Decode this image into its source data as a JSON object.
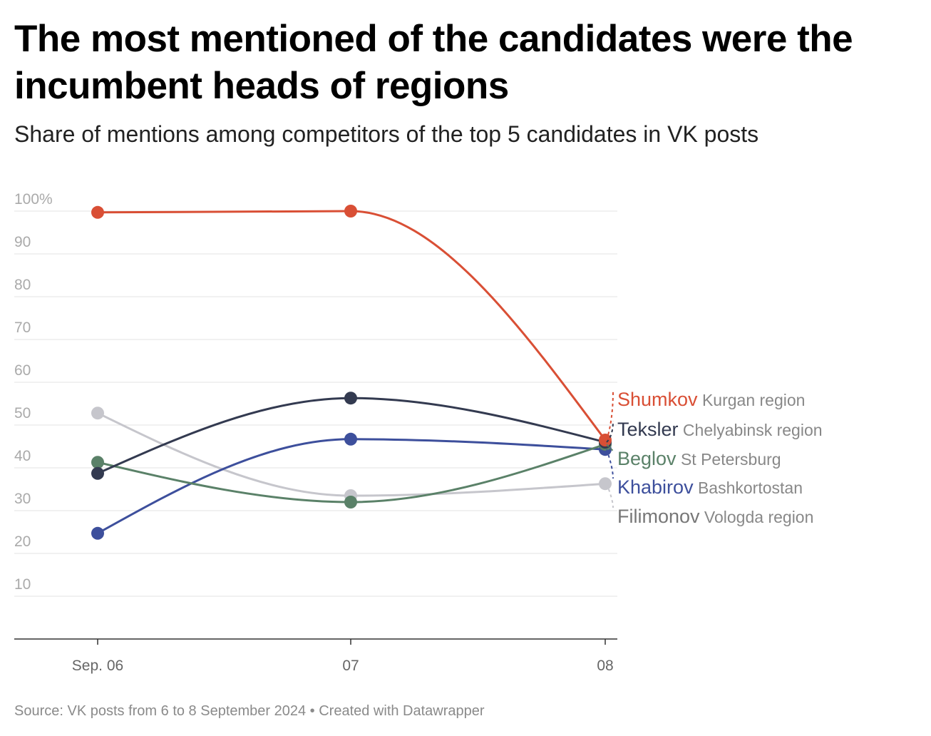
{
  "title": "The most mentioned of the candidates were the incumbent heads of regions",
  "subtitle": "Share of mentions among competitors of the top 5 candidates in VK posts",
  "source": "Source: VK posts from 6 to 8 September 2024 • Created with Datawrapper",
  "chart_data": {
    "type": "line",
    "x": [
      "Sep. 06",
      "07",
      "08"
    ],
    "ylim": [
      0,
      100
    ],
    "yticks": [
      10,
      20,
      30,
      40,
      50,
      60,
      70,
      80,
      90,
      100
    ],
    "ytick_labels": [
      "10",
      "20",
      "30",
      "40",
      "50",
      "60",
      "70",
      "80",
      "90",
      "100%"
    ],
    "grid": true,
    "series": [
      {
        "name": "Shumkov",
        "region": "Kurgan region",
        "color": "#d94f35",
        "values": [
          99.7,
          100,
          46.5
        ]
      },
      {
        "name": "Teksler",
        "region": "Chelyabinsk region",
        "color": "#333a50",
        "values": [
          38.7,
          56.3,
          46
        ]
      },
      {
        "name": "Beglov",
        "region": "St Petersburg",
        "color": "#5a8168",
        "values": [
          41.3,
          32,
          45.5
        ]
      },
      {
        "name": "Khabirov",
        "region": "Bashkortostan",
        "color": "#3d4f9c",
        "values": [
          24.7,
          46.7,
          44.3
        ]
      },
      {
        "name": "Filimonov",
        "region": "Vologda region",
        "color": "#c6c6cc",
        "values": [
          52.8,
          33.5,
          36.3
        ]
      }
    ]
  }
}
